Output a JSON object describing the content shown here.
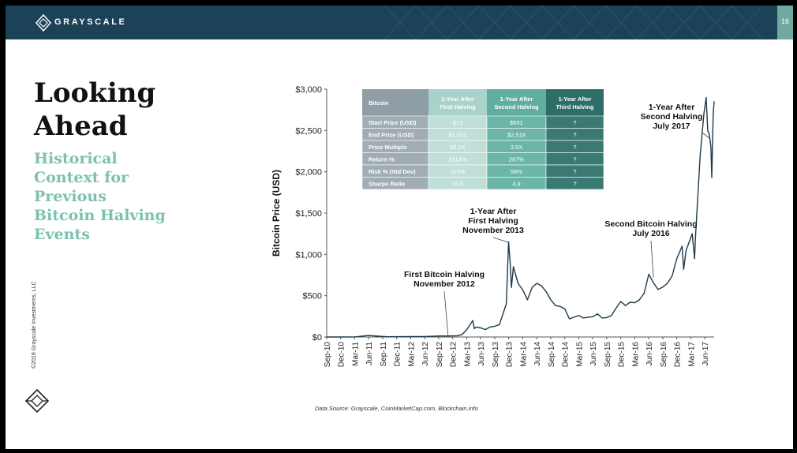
{
  "header": {
    "brand": "GRAYSCALE",
    "page_number": "16"
  },
  "title_lines": [
    "Looking",
    "Ahead"
  ],
  "subtitle_lines": [
    "Historical",
    "Context for",
    "Previous",
    "Bitcoin Halving",
    "Events"
  ],
  "copyright": "©2019 Grayscale Investments, LLC",
  "source": "Data Source: Grayscale, CoinMarketCap.com, Blockchain.info",
  "colors": {
    "banner": "#1c4257",
    "accent_teal": "#7ec0b2",
    "line": "#1f3a4a"
  },
  "chart_data": {
    "type": "line",
    "title": "",
    "ylabel": "Bitcoin Price (USD)",
    "xlabel": "",
    "ylim": [
      0,
      3000
    ],
    "y_ticks": [
      "$0",
      "$500",
      "$1,000",
      "$1,500",
      "$2,000",
      "$2,500",
      "$3,000"
    ],
    "x_ticks": [
      "Sep-10",
      "Dec-10",
      "Mar-11",
      "Jun-11",
      "Sep-11",
      "Dec-11",
      "Mar-12",
      "Jun-12",
      "Sep-12",
      "Dec-12",
      "Mar-13",
      "Jun-13",
      "Sep-13",
      "Dec-13",
      "Mar-14",
      "Jun-14",
      "Sep-14",
      "Dec-14",
      "Mar-15",
      "Jun-15",
      "Sep-15",
      "Dec-15",
      "Mar-16",
      "Jun-16",
      "Sep-16",
      "Dec-16",
      "Mar-17",
      "Jun-17"
    ],
    "grid": false,
    "series": [
      {
        "points": [
          [
            "2010-09",
            0.06
          ],
          [
            "2010-12",
            0.3
          ],
          [
            "2011-03",
            0.9
          ],
          [
            "2011-06",
            18
          ],
          [
            "2011-08",
            10
          ],
          [
            "2011-10",
            3
          ],
          [
            "2011-12",
            4
          ],
          [
            "2012-03",
            5
          ],
          [
            "2012-06",
            6
          ],
          [
            "2012-09",
            12
          ],
          [
            "2012-11",
            12
          ],
          [
            "2013-01",
            15
          ],
          [
            "2013-02",
            30
          ],
          [
            "2013-03",
            90
          ],
          [
            "2013-04-10",
            200
          ],
          [
            "2013-04-20",
            100
          ],
          [
            "2013-05",
            120
          ],
          [
            "2013-06",
            110
          ],
          [
            "2013-07",
            90
          ],
          [
            "2013-08",
            120
          ],
          [
            "2013-09",
            130
          ],
          [
            "2013-10",
            150
          ],
          [
            "2013-11-15",
            400
          ],
          [
            "2013-11-30",
            1150
          ],
          [
            "2013-12-10",
            900
          ],
          [
            "2013-12-18",
            600
          ],
          [
            "2014-01",
            850
          ],
          [
            "2014-02",
            650
          ],
          [
            "2014-03",
            570
          ],
          [
            "2014-04",
            450
          ],
          [
            "2014-05",
            600
          ],
          [
            "2014-06",
            650
          ],
          [
            "2014-07",
            620
          ],
          [
            "2014-08",
            550
          ],
          [
            "2014-09",
            450
          ],
          [
            "2014-10",
            380
          ],
          [
            "2014-11",
            370
          ],
          [
            "2014-12",
            340
          ],
          [
            "2015-01",
            220
          ],
          [
            "2015-02",
            240
          ],
          [
            "2015-03",
            260
          ],
          [
            "2015-04",
            230
          ],
          [
            "2015-05",
            240
          ],
          [
            "2015-06",
            245
          ],
          [
            "2015-07",
            280
          ],
          [
            "2015-08",
            230
          ],
          [
            "2015-09",
            235
          ],
          [
            "2015-10",
            260
          ],
          [
            "2015-11",
            350
          ],
          [
            "2015-12",
            430
          ],
          [
            "2016-01",
            380
          ],
          [
            "2016-02",
            420
          ],
          [
            "2016-03",
            415
          ],
          [
            "2016-04",
            450
          ],
          [
            "2016-05",
            530
          ],
          [
            "2016-06",
            760
          ],
          [
            "2016-07",
            655
          ],
          [
            "2016-08",
            575
          ],
          [
            "2016-09",
            605
          ],
          [
            "2016-10",
            650
          ],
          [
            "2016-11",
            740
          ],
          [
            "2016-12",
            950
          ],
          [
            "2017-01-05",
            1100
          ],
          [
            "2017-01-15",
            820
          ],
          [
            "2017-02",
            1050
          ],
          [
            "2017-03-10",
            1250
          ],
          [
            "2017-03-25",
            950
          ],
          [
            "2017-04",
            1200
          ],
          [
            "2017-05",
            2200
          ],
          [
            "2017-05-25",
            2700
          ],
          [
            "2017-06-10",
            2900
          ],
          [
            "2017-06-20",
            2500
          ],
          [
            "2017-06-30",
            2450
          ],
          [
            "2017-07-10",
            2300
          ],
          [
            "2017-07-16",
            1930
          ],
          [
            "2017-07-25",
            2700
          ],
          [
            "2017-08-01",
            2850
          ]
        ]
      }
    ],
    "annotations": [
      {
        "text": [
          "First Bitcoin Halving",
          "November 2012"
        ],
        "at": "2012-11"
      },
      {
        "text": [
          "1-Year After",
          "First Halving",
          "November 2013"
        ],
        "at": "2013-11-29"
      },
      {
        "text": [
          "Second Bitcoin Halving",
          "July 2016"
        ],
        "at": "2016-07"
      },
      {
        "text": [
          "1-Year After",
          "Second Halving",
          "July 2017"
        ],
        "at": "2017-07"
      }
    ],
    "table": {
      "columns": [
        "Bitcoin",
        "1-Year After First Halving",
        "1-Year After Second Halving",
        "1-Year After Third Halving"
      ],
      "rows": [
        [
          "Start Price (USD)",
          "$13",
          "$651",
          "?"
        ],
        [
          "End Price (USD)",
          "$1,032",
          "$2,518",
          "?"
        ],
        [
          "Price Multiple",
          "82.1X",
          "3.9X",
          "?"
        ],
        [
          "Return %",
          "8113%",
          "287%",
          "?"
        ],
        [
          "Risk % (Std Dev)",
          "115%",
          "58%",
          "?"
        ],
        [
          "Sharpe Ratio",
          "70.6",
          "4.9",
          "?"
        ]
      ]
    }
  }
}
